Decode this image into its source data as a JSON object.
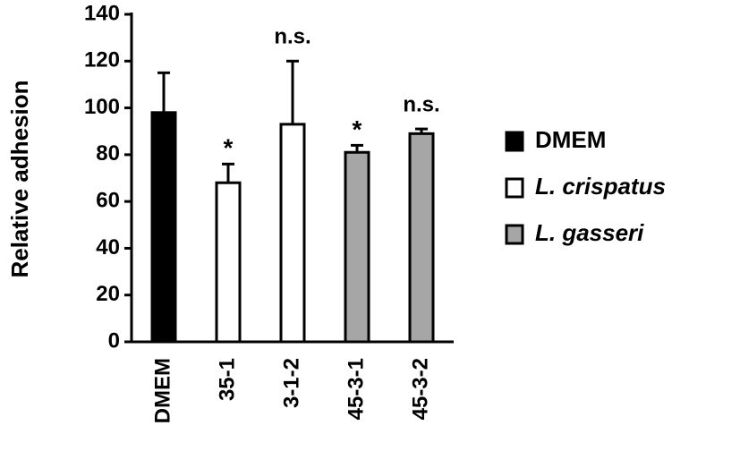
{
  "chart_data": {
    "type": "bar",
    "ylabel": "Relative adhesion",
    "categories": [
      "DMEM",
      "35-1",
      "3-1-2",
      "45-3-1",
      "45-3-2"
    ],
    "values": [
      98,
      68,
      93,
      81,
      89
    ],
    "errors": [
      17,
      8,
      27,
      3,
      2
    ],
    "colors": [
      "#000000",
      "#ffffff",
      "#ffffff",
      "#a6a6a6",
      "#a6a6a6"
    ],
    "annotations": [
      null,
      "*",
      "n.s.",
      "*",
      "n.s."
    ],
    "ylim": [
      0,
      140
    ],
    "yticks": [
      0,
      20,
      40,
      60,
      80,
      100,
      120,
      140
    ],
    "legend": [
      {
        "name": "DMEM",
        "color": "#000000",
        "italic": false
      },
      {
        "name": "L. crispatus",
        "color": "#ffffff",
        "italic": true
      },
      {
        "name": "L. gasseri",
        "color": "#a6a6a6",
        "italic": true
      }
    ]
  }
}
